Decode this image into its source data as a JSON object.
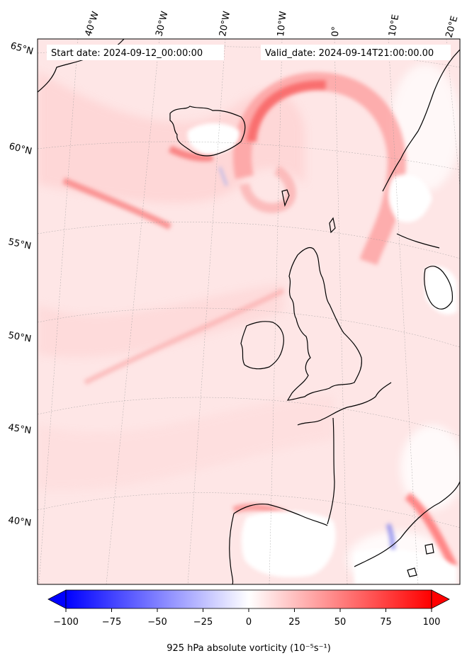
{
  "map": {
    "start_date_label": "Start date: 2024-09-12_00:00:00",
    "valid_date_label": "Valid_date: 2024-09-14T21:00:00.00",
    "lon_labels": [
      "40°W",
      "30°W",
      "20°W",
      "10°W",
      "0°",
      "10°E",
      "20°E"
    ],
    "lat_labels": [
      "65°N",
      "60°N",
      "55°N",
      "50°N",
      "45°N",
      "40°N"
    ],
    "colors": {
      "negative": "#0000ff",
      "neutral": "#ffffff",
      "positive": "#ff0000",
      "coastline": "#000000"
    }
  },
  "colorbar": {
    "label": "925 hPa absolute vorticity (10⁻⁵s⁻¹)",
    "range": [
      -100,
      100
    ],
    "tick_labels": [
      "−100",
      "−75",
      "−50",
      "−25",
      "0",
      "25",
      "50",
      "75",
      "100"
    ],
    "extend": "both"
  }
}
